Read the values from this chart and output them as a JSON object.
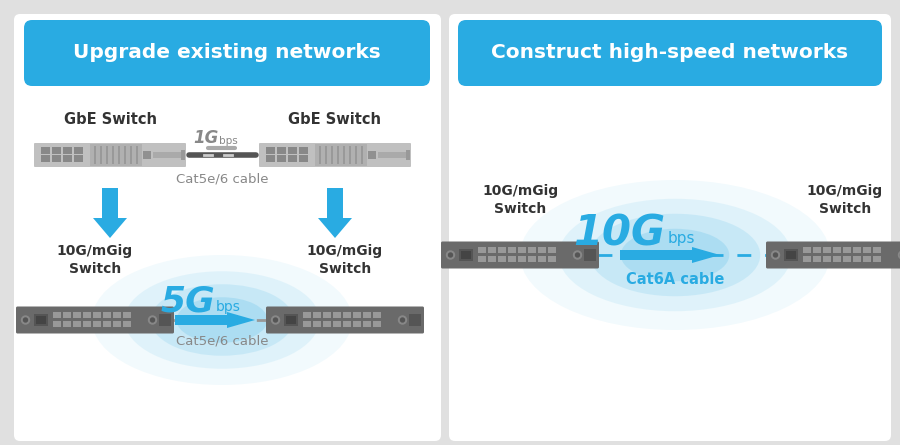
{
  "bg_color": "#e0e0e0",
  "panel1": {
    "bg": "#ffffff",
    "title": "Upgrade existing networks",
    "title_bg": "#29abe2",
    "title_color": "#ffffff",
    "top_left_label": "GbE Switch",
    "top_right_label": "GbE Switch",
    "top_speed_big": "1G",
    "top_speed_small": "bps",
    "top_cable": "Cat5e/6 cable",
    "bot_left_label": "10G/mGig\nSwitch",
    "bot_right_label": "10G/mGig\nSwitch",
    "bot_speed_big": "5G",
    "bot_speed_small": "bps",
    "bot_cable": "Cat5e/6 cable",
    "speed_color": "#29abe2",
    "cable_color_top": "#888888",
    "cable_color_bot": "#aaaaaa",
    "switch_top_color": "#bbbbbb",
    "switch_bot_color": "#777777",
    "arrow_color": "#29abe2",
    "label_color": "#333333"
  },
  "panel2": {
    "bg": "#ffffff",
    "title": "Construct high-speed networks",
    "title_bg": "#29abe2",
    "title_color": "#ffffff",
    "left_label": "10G/mGig\nSwitch",
    "right_label": "10G/mGig\nSwitch",
    "speed_big": "10G",
    "speed_small": "bps",
    "cable": "Cat6A cable",
    "speed_color": "#29abe2",
    "cable_color": "#29abe2",
    "switch_color": "#777777",
    "arrow_color": "#29abe2",
    "label_color": "#333333"
  }
}
